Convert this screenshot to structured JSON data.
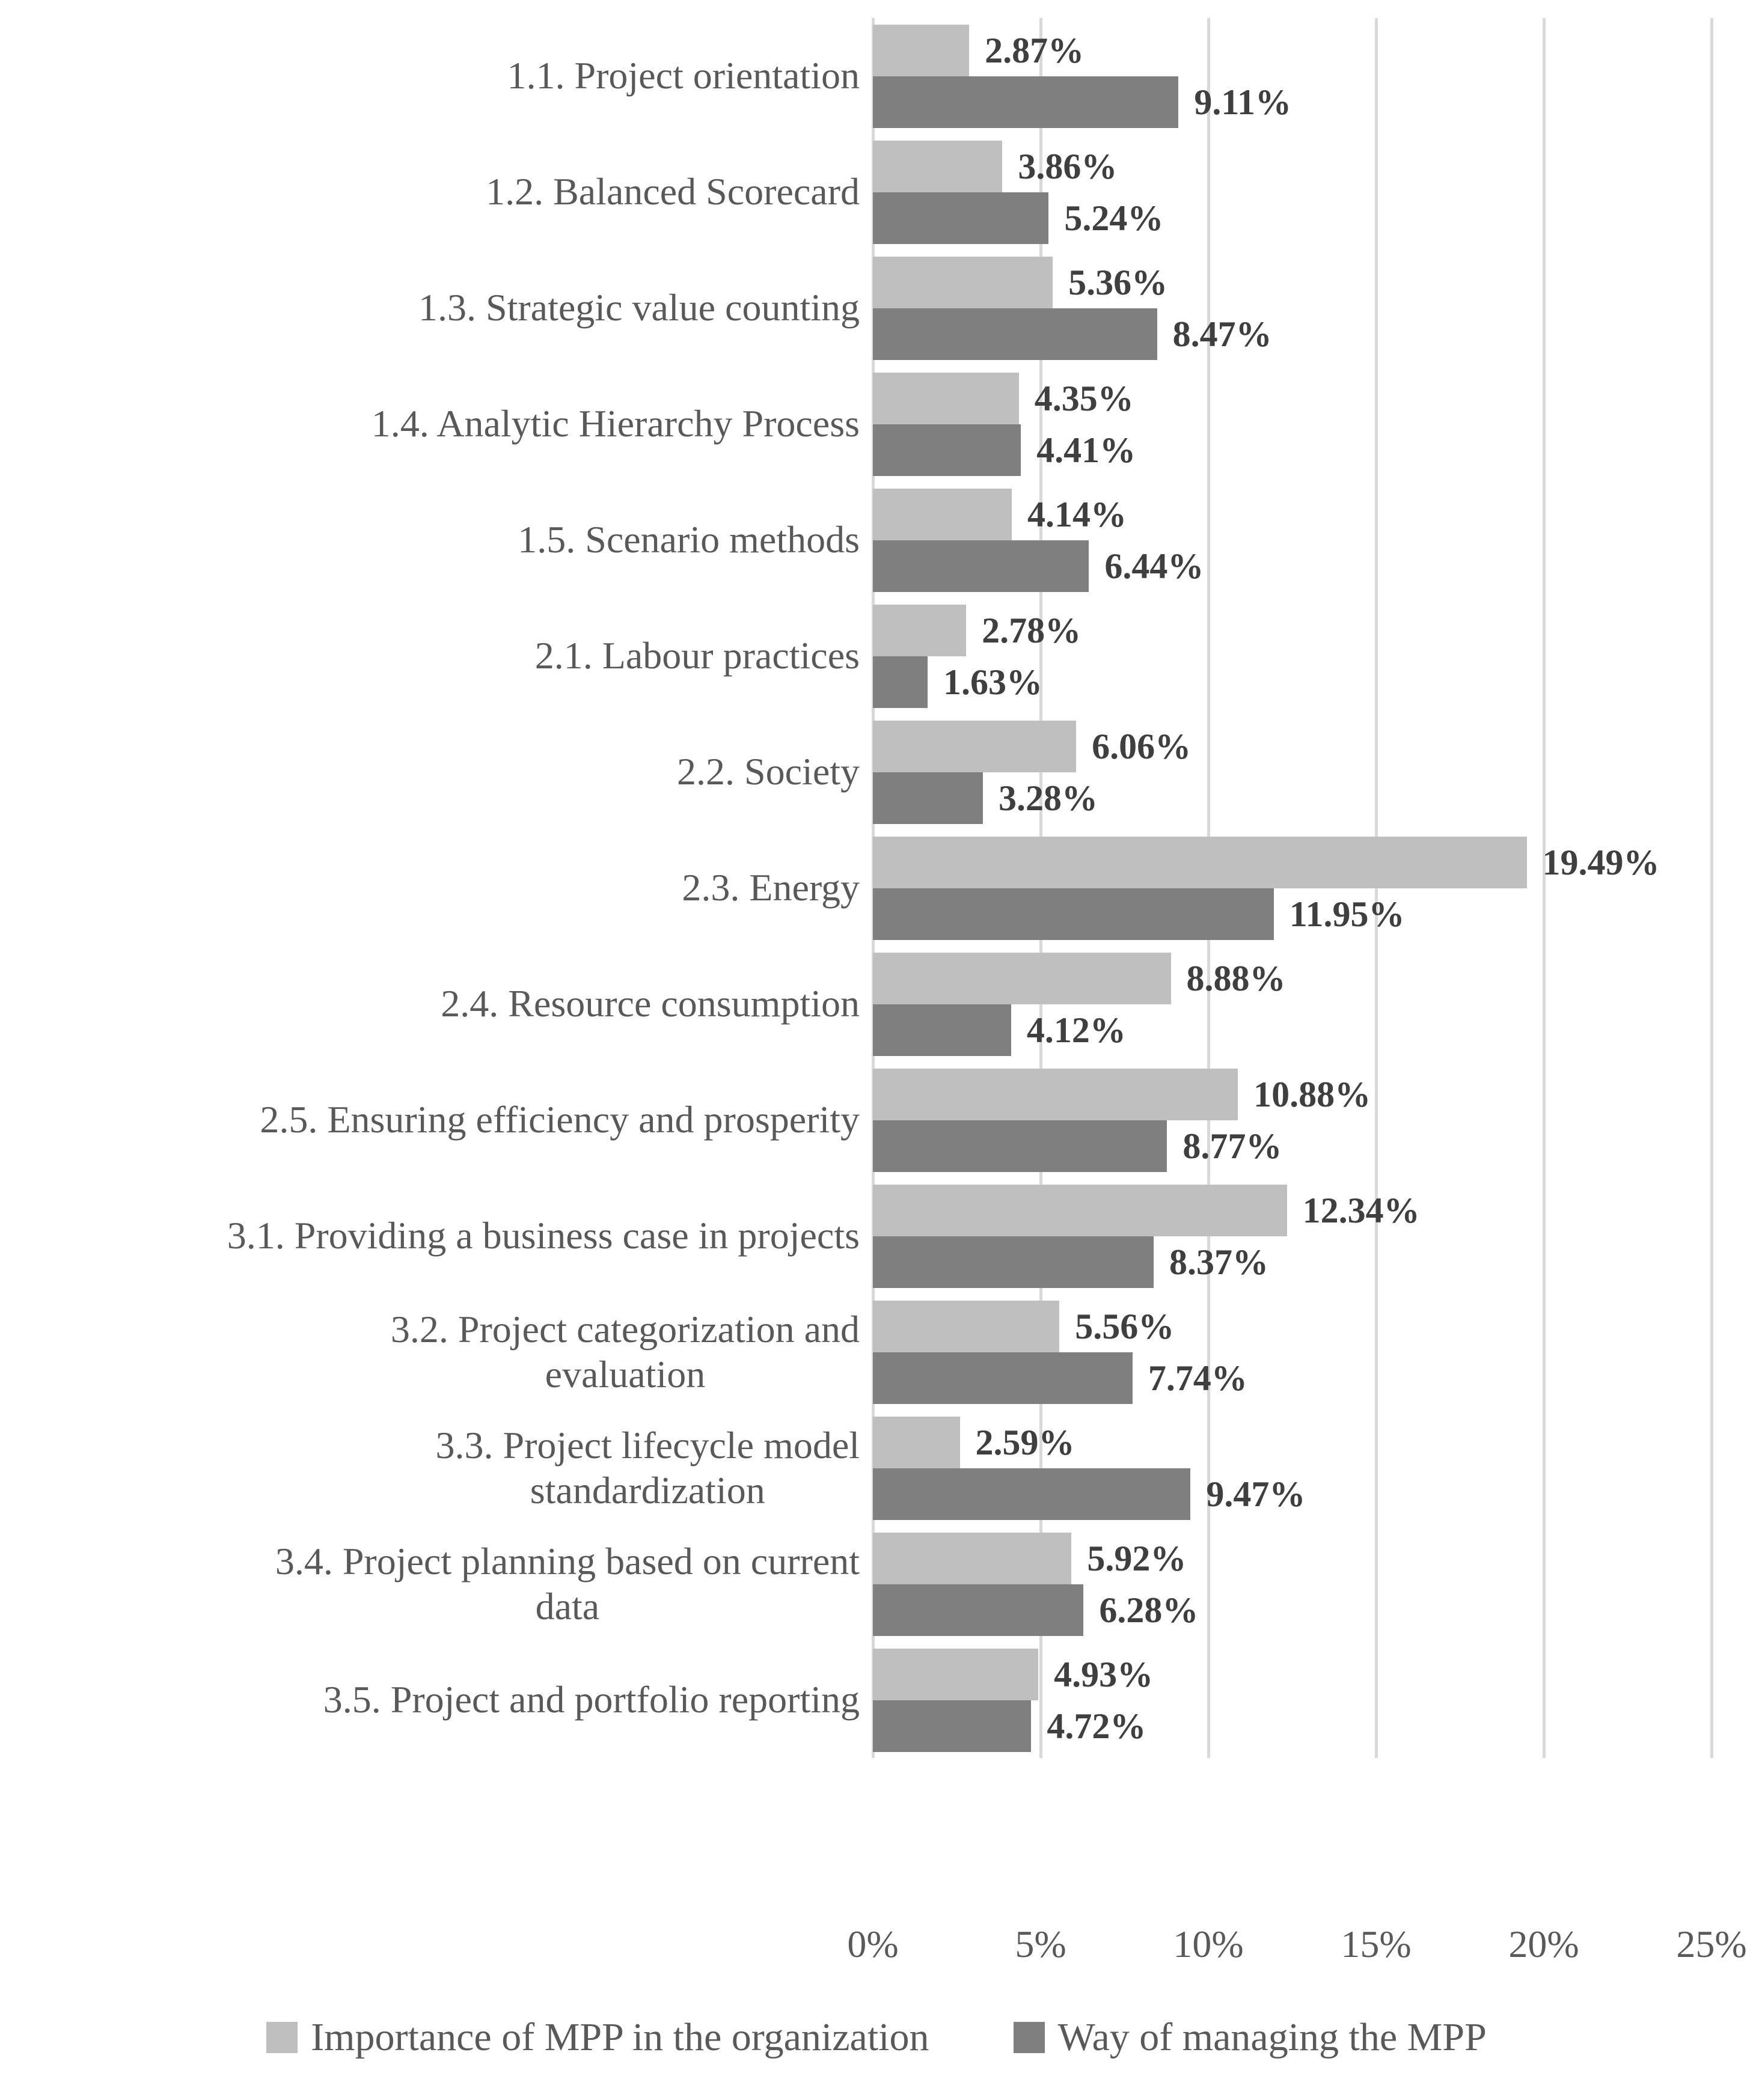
{
  "chart_data": {
    "type": "bar",
    "orientation": "horizontal",
    "title": "",
    "xlabel": "",
    "ylabel": "",
    "categories": [
      "1.1. Project orientation",
      "1.2. Balanced Scorecard",
      "1.3. Strategic value counting",
      "1.4. Analytic Hierarchy Process",
      "1.5. Scenario methods",
      "2.1. Labour practices",
      "2.2. Society",
      "2.3. Energy",
      "2.4. Resource consumption",
      "2.5. Ensuring efficiency and prosperity",
      "3.1. Providing a business case in projects",
      "3.2. Project categorization and\nevaluation",
      "3.3. Project lifecycle model\nstandardization",
      "3.4. Project planning based on current\ndata",
      "3.5. Project and portfolio reporting"
    ],
    "series": [
      {
        "name": "Importance of MPP in the organization",
        "color": "#bfbfbf",
        "values": [
          2.87,
          3.86,
          5.36,
          4.35,
          4.14,
          2.78,
          6.06,
          19.49,
          8.88,
          10.88,
          12.34,
          5.56,
          2.59,
          5.92,
          4.93
        ],
        "labels": [
          "2.87%",
          "3.86%",
          "5.36%",
          "4.35%",
          "4.14%",
          "2.78%",
          "6.06%",
          "19.49%",
          "8.88%",
          "10.88%",
          "12.34%",
          "5.56%",
          "2.59%",
          "5.92%",
          "4.93%"
        ]
      },
      {
        "name": "Way of managing the MPP",
        "color": "#7f7f7f",
        "values": [
          9.11,
          5.24,
          8.47,
          4.41,
          6.44,
          1.63,
          3.28,
          11.95,
          4.12,
          8.77,
          8.37,
          7.74,
          9.47,
          6.28,
          4.72
        ],
        "labels": [
          "9.11%",
          "5.24%",
          "8.47%",
          "4.41%",
          "6.44%",
          "1.63%",
          "3.28%",
          "11.95%",
          "4.12%",
          "8.77%",
          "8.37%",
          "7.74%",
          "9.47%",
          "6.28%",
          "4.72%"
        ]
      }
    ],
    "x_axis": {
      "ticks": [
        "0%",
        "5%",
        "10%",
        "15%",
        "20%",
        "25%"
      ],
      "min": 0,
      "max": 25,
      "step": 5
    },
    "grid": true,
    "legend_position": "bottom",
    "colors": {
      "grid": "#d9d9d9",
      "value_label": "#3f3f3f",
      "axis_text": "#595959",
      "category_text": "#595959",
      "background": "#ffffff"
    }
  }
}
